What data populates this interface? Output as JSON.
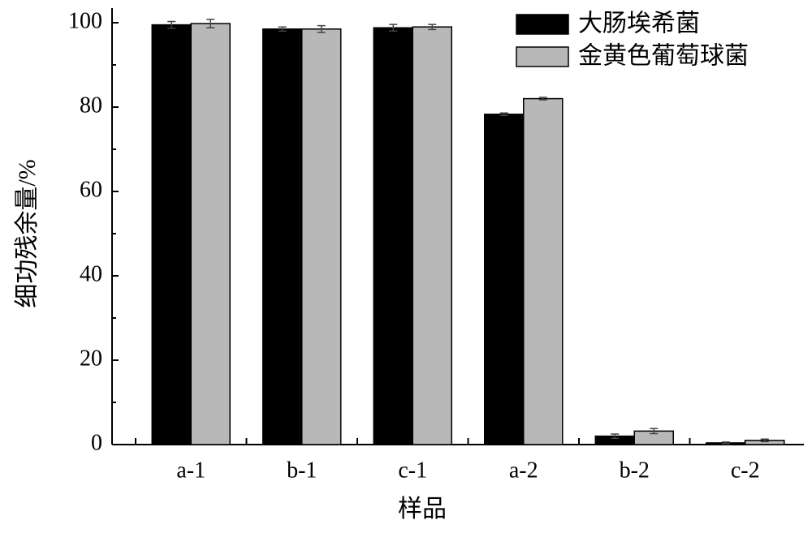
{
  "chart_data": {
    "type": "bar",
    "x_label": "样品",
    "y_label": "细功残余量/%",
    "categories": [
      "a-1",
      "b-1",
      "c-1",
      "a-2",
      "b-2",
      "c-2"
    ],
    "series": [
      {
        "name": "大肠埃希菌",
        "color": "#000000",
        "values": [
          99.5,
          98.5,
          98.8,
          78.3,
          2.0,
          0.4
        ],
        "errors": [
          0.8,
          0.5,
          0.8,
          0.3,
          0.5,
          0.2
        ]
      },
      {
        "name": "金黄色葡萄球菌",
        "color": "#b8b8b8",
        "values": [
          99.8,
          98.5,
          99.0,
          82.0,
          3.2,
          1.0
        ],
        "errors": [
          1.0,
          0.8,
          0.6,
          0.3,
          0.6,
          0.3
        ]
      }
    ],
    "ylim": [
      0,
      100
    ],
    "yticks": [
      0,
      20,
      40,
      60,
      80,
      100
    ],
    "legend": "upper right"
  }
}
